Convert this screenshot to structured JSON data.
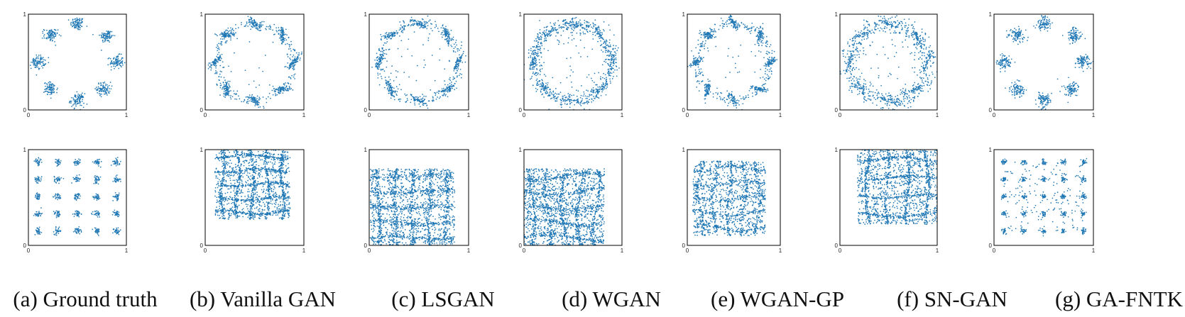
{
  "colors": {
    "points": "#1f77b4",
    "frame": "#000000"
  },
  "chart_data": [
    {
      "type": "scatter",
      "caption": "(a) Ground truth",
      "xlim": [
        0,
        1
      ],
      "ylim": [
        0,
        1
      ],
      "x_ticks": [
        "0",
        "1"
      ],
      "y_ticks": [
        "0",
        "1"
      ],
      "grid": false,
      "rows": [
        {
          "dataset": "ring of 8 Gaussians",
          "clusters": [
            {
              "x": 0.5,
              "y": 0.9
            },
            {
              "x": 0.8,
              "y": 0.77
            },
            {
              "x": 0.9,
              "y": 0.5
            },
            {
              "x": 0.77,
              "y": 0.22
            },
            {
              "x": 0.5,
              "y": 0.1
            },
            {
              "x": 0.23,
              "y": 0.22
            },
            {
              "x": 0.1,
              "y": 0.5
            },
            {
              "x": 0.23,
              "y": 0.78
            }
          ]
        },
        {
          "dataset": "5x5 grid of Gaussians",
          "grid_x": [
            0.1,
            0.3,
            0.5,
            0.7,
            0.9
          ],
          "grid_y": [
            0.15,
            0.33,
            0.51,
            0.69,
            0.87
          ]
        }
      ]
    },
    {
      "type": "scatter",
      "caption": "(b) Vanilla GAN",
      "xlim": [
        0,
        1
      ],
      "ylim": [
        0,
        1
      ],
      "x_ticks": [
        "0",
        "1"
      ],
      "y_ticks": [
        "0",
        "1"
      ],
      "grid": false
    },
    {
      "type": "scatter",
      "caption": "(c) LSGAN",
      "xlim": [
        0,
        1
      ],
      "ylim": [
        0,
        1
      ],
      "x_ticks": [
        "0",
        "1"
      ],
      "y_ticks": [
        "0",
        "1"
      ],
      "grid": false
    },
    {
      "type": "scatter",
      "caption": "(d) WGAN",
      "xlim": [
        0,
        1
      ],
      "ylim": [
        0,
        1
      ],
      "x_ticks": [
        "0",
        "1"
      ],
      "y_ticks": [
        "0",
        "1"
      ],
      "grid": false
    },
    {
      "type": "scatter",
      "caption": "(e) WGAN-GP",
      "xlim": [
        0,
        1
      ],
      "ylim": [
        0,
        1
      ],
      "x_ticks": [
        "0",
        "1"
      ],
      "y_ticks": [
        "0",
        "1"
      ],
      "grid": false
    },
    {
      "type": "scatter",
      "caption": "(f) SN-GAN",
      "xlim": [
        0,
        1
      ],
      "ylim": [
        0,
        1
      ],
      "x_ticks": [
        "0",
        "1"
      ],
      "y_ticks": [
        "0",
        "1"
      ],
      "grid": false
    },
    {
      "type": "scatter",
      "caption": "(g) GA-FNTK",
      "xlim": [
        0,
        1
      ],
      "ylim": [
        0,
        1
      ],
      "x_ticks": [
        "0",
        "1"
      ],
      "y_ticks": [
        "0",
        "1"
      ],
      "grid": false
    }
  ]
}
